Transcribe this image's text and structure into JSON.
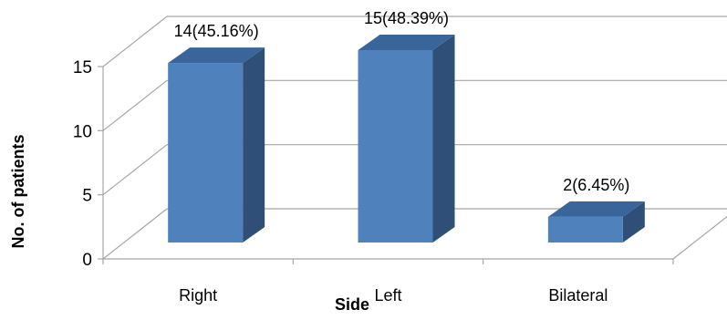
{
  "chart_data": {
    "type": "bar",
    "style": "3d-clustered-column",
    "categories": [
      "Right",
      "Left",
      "Bilateral"
    ],
    "values": [
      14,
      15,
      2
    ],
    "data_labels": [
      "14(45.16%)",
      "15(48.39%)",
      "2(6.45%)"
    ],
    "xlabel": "Side",
    "ylabel": "No. of patients",
    "ylim": [
      0,
      15
    ],
    "yticks": [
      0,
      5,
      10,
      15
    ],
    "grid": true,
    "legend": "none",
    "colors": {
      "bar_front": "#4f81bd",
      "bar_top": "#3a659b",
      "bar_side": "#2f4f78",
      "grid": "#a6a6a6"
    }
  }
}
